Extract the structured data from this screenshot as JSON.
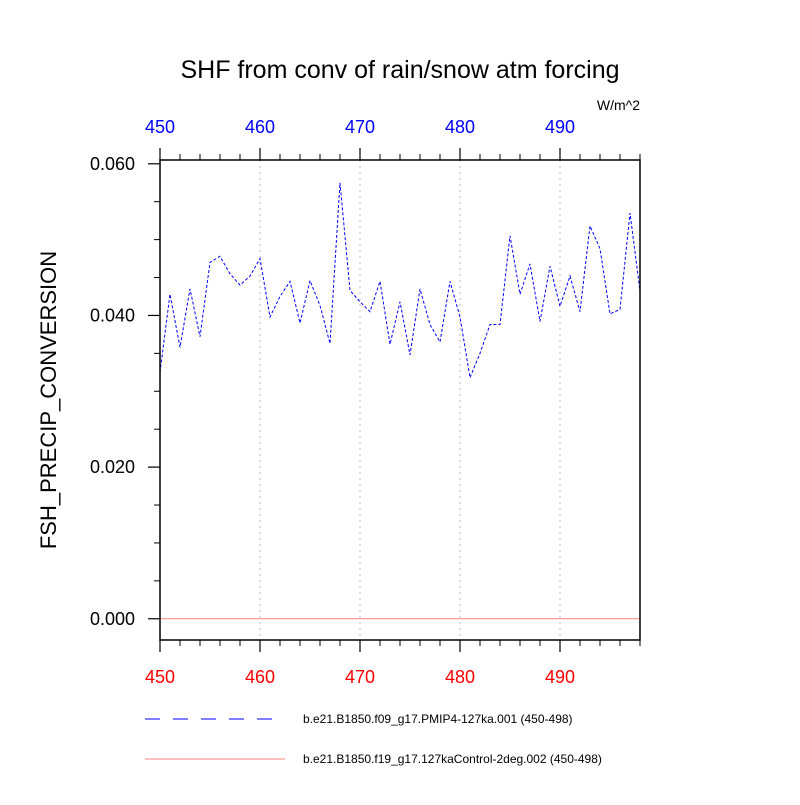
{
  "chart_data": {
    "type": "line",
    "title": "SHF from conv of rain/snow atm forcing",
    "units": "W/m^2",
    "ylabel": "FSH_PRECIP_CONVERSION",
    "xlabel": "",
    "xlim": [
      450,
      498
    ],
    "ylim": [
      -0.0028,
      0.0605
    ],
    "x_ticks": [
      450,
      460,
      470,
      480,
      490
    ],
    "x_tick_labels": [
      "450",
      "460",
      "470",
      "480",
      "490"
    ],
    "top_x_tick_labels": [
      "450",
      "460",
      "470",
      "480",
      "490"
    ],
    "y_ticks": [
      0.0,
      0.02,
      0.04,
      0.06
    ],
    "y_tick_labels": [
      "0.000",
      "0.020",
      "0.040",
      "0.060"
    ],
    "grid": "vertical dotted at major x ticks",
    "legend_position": "bottom",
    "bottom_axis_color": "#ff0000",
    "top_axis_color": "#0000ff",
    "series": [
      {
        "name": "b.e21.B1850.f09_g17.PMIP4-127ka.001 (450-498)",
        "color": "#0000ff",
        "style": "dashed",
        "x": [
          450,
          451,
          452,
          453,
          454,
          455,
          456,
          457,
          458,
          459,
          460,
          461,
          462,
          463,
          464,
          465,
          466,
          467,
          468,
          469,
          470,
          471,
          472,
          473,
          474,
          475,
          476,
          477,
          478,
          479,
          480,
          481,
          482,
          483,
          484,
          485,
          486,
          487,
          488,
          489,
          490,
          491,
          492,
          493,
          494,
          495,
          496,
          497,
          498
        ],
        "values": [
          0.0325,
          0.0428,
          0.0358,
          0.0435,
          0.0372,
          0.047,
          0.0478,
          0.0455,
          0.044,
          0.0452,
          0.0475,
          0.0398,
          0.0425,
          0.0445,
          0.039,
          0.0446,
          0.0413,
          0.0363,
          0.0575,
          0.0433,
          0.0418,
          0.0405,
          0.0445,
          0.0362,
          0.0418,
          0.0348,
          0.0435,
          0.0388,
          0.0365,
          0.0445,
          0.0398,
          0.0318,
          0.035,
          0.0388,
          0.0388,
          0.0505,
          0.0428,
          0.0468,
          0.0392,
          0.0465,
          0.0412,
          0.0452,
          0.0405,
          0.0518,
          0.0488,
          0.0402,
          0.0408,
          0.0535,
          0.0432
        ]
      },
      {
        "name": "b.e21.B1850.f19_g17.127kaControl-2deg.002 (450-498)",
        "color": "#ff8080",
        "style": "solid",
        "x": [
          450,
          498
        ],
        "values": [
          0.0,
          0.0
        ]
      }
    ]
  }
}
